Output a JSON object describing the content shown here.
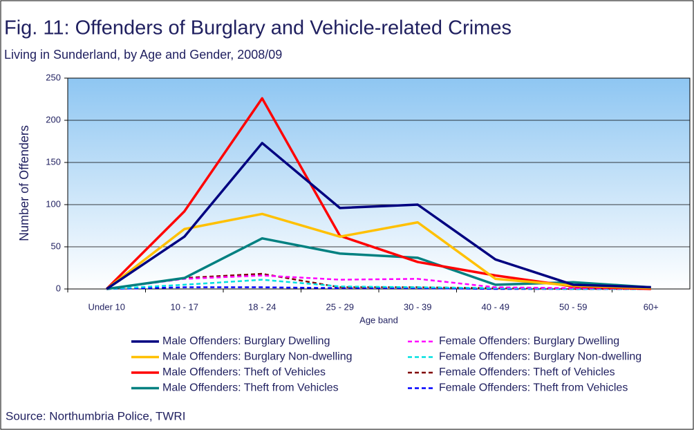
{
  "chart_data": {
    "type": "line",
    "title": "Fig. 11: Offenders of Burglary and Vehicle-related Crimes",
    "subtitle": "Living in Sunderland, by Age and Gender, 2008/09",
    "x_label": "Age band",
    "y_label": "Number of Offenders",
    "source": "Source: Northumbria Police, TWRI",
    "categories": [
      "Under 10",
      "10 - 17",
      "18 - 24",
      "25 - 29",
      "30 - 39",
      "40 - 49",
      "50 - 59",
      "60+"
    ],
    "ylim": [
      0,
      250
    ],
    "yticks": [
      0,
      50,
      100,
      150,
      200,
      250
    ],
    "grid": true,
    "series": [
      {
        "name": "Male Offenders: Burglary Dwelling",
        "color": "#000080",
        "linestyle": "solid",
        "values": [
          0,
          62,
          173,
          96,
          100,
          35,
          5,
          2
        ]
      },
      {
        "name": "Male Offenders: Burglary Non-dwelling",
        "color": "#ffc000",
        "linestyle": "solid",
        "values": [
          0,
          71,
          89,
          62,
          79,
          12,
          4,
          1
        ]
      },
      {
        "name": "Male Offenders: Theft of Vehicles",
        "color": "#ff0000",
        "linestyle": "solid",
        "values": [
          0,
          92,
          226,
          63,
          32,
          16,
          3,
          0
        ]
      },
      {
        "name": "Male Offenders: Theft from Vehicles",
        "color": "#008080",
        "linestyle": "solid",
        "values": [
          0,
          13,
          60,
          42,
          37,
          5,
          8,
          2
        ]
      },
      {
        "name": "Female Offenders: Burglary Dwelling",
        "color": "#ff00ff",
        "linestyle": "dashed",
        "values": [
          0,
          12,
          16,
          11,
          12,
          2,
          1,
          0
        ]
      },
      {
        "name": "Female Offenders: Burglary Non-dwelling",
        "color": "#00e0e0",
        "linestyle": "dashed",
        "values": [
          0,
          5,
          11,
          3,
          2,
          1,
          0,
          0
        ]
      },
      {
        "name": "Female Offenders: Theft of Vehicles",
        "color": "#800000",
        "linestyle": "dashed",
        "values": [
          0,
          13,
          18,
          2,
          2,
          1,
          0,
          0
        ]
      },
      {
        "name": "Female Offenders: Theft from Vehicles",
        "color": "#0000ff",
        "linestyle": "dashed",
        "values": [
          0,
          2,
          2,
          1,
          1,
          0,
          0,
          0
        ]
      }
    ]
  }
}
